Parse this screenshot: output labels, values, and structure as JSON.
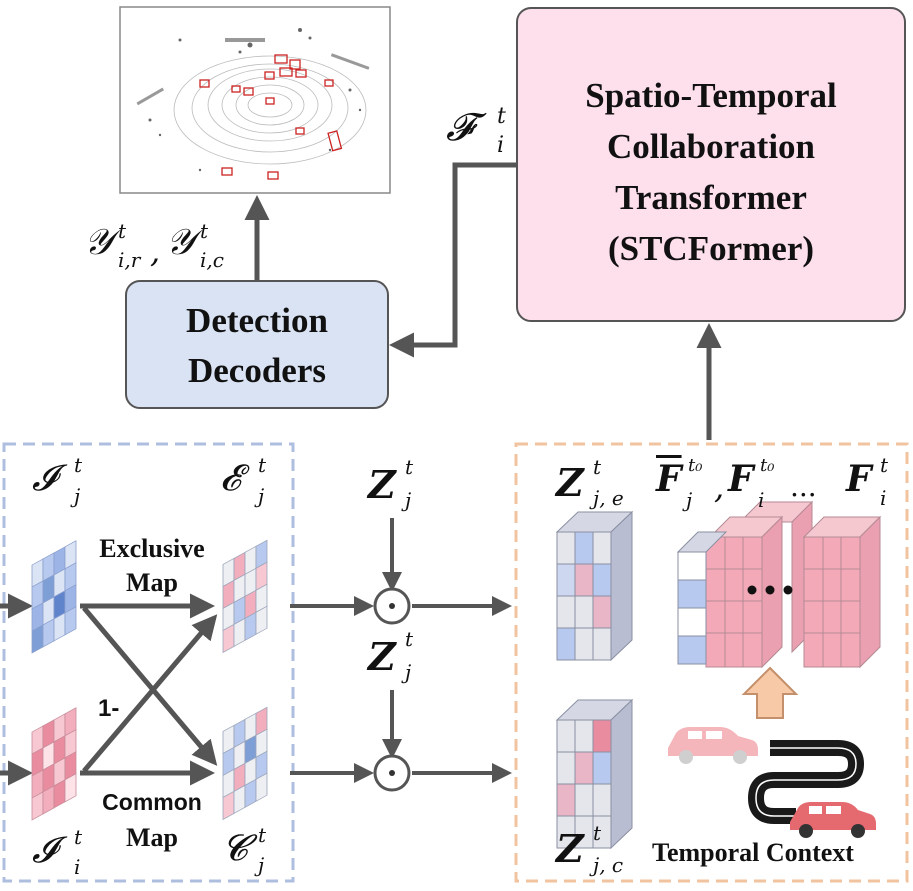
{
  "blocks": {
    "stcformer": {
      "line1": "Spatio-Temporal",
      "line2": "Collaboration",
      "line3": "Transformer",
      "line4": "(STCFormer)"
    },
    "decoder": {
      "line1": "Detection",
      "line2": "Decoders"
    }
  },
  "labels": {
    "exclusive_map_1": "Exclusive",
    "exclusive_map_2": "Map",
    "common_map_1": "Common",
    "common_map_2": "Map",
    "one_minus": "1-",
    "temporal_context": "Temporal Context",
    "ellipsis": "..."
  },
  "math": {
    "fused_feature": "𝓕",
    "fused_feature_sup": "t",
    "fused_feature_sub": "i",
    "detection_outputs": "𝒴",
    "detection_outputs_sup": "t",
    "detection_outputs_sub_r": "i,r",
    "detection_outputs_sub_c": "i,c",
    "comma": ",",
    "I_j": "𝓘",
    "I_i": "𝓘",
    "E_j": "𝓔",
    "C_j": "𝓒",
    "Z": "𝒁",
    "F": "𝑭",
    "sup_t": "t",
    "sup_t0": "t₀",
    "sub_j": "j",
    "sub_i": "i",
    "sub_je": "j, e",
    "sub_jc": "j, c",
    "odot": "⊙"
  },
  "colors": {
    "stcformer_fill": "#fde0ec",
    "decoder_fill": "#d9e3f3",
    "arrow": "#555555",
    "blue_dash": "#aebedf",
    "orange_dash": "#f1c39f",
    "cell_blue": "#7e9ed6",
    "cell_red": "#ea8c9f",
    "cell_pink": "#f7c8d2",
    "cell_grey": "#e4e6ec"
  }
}
